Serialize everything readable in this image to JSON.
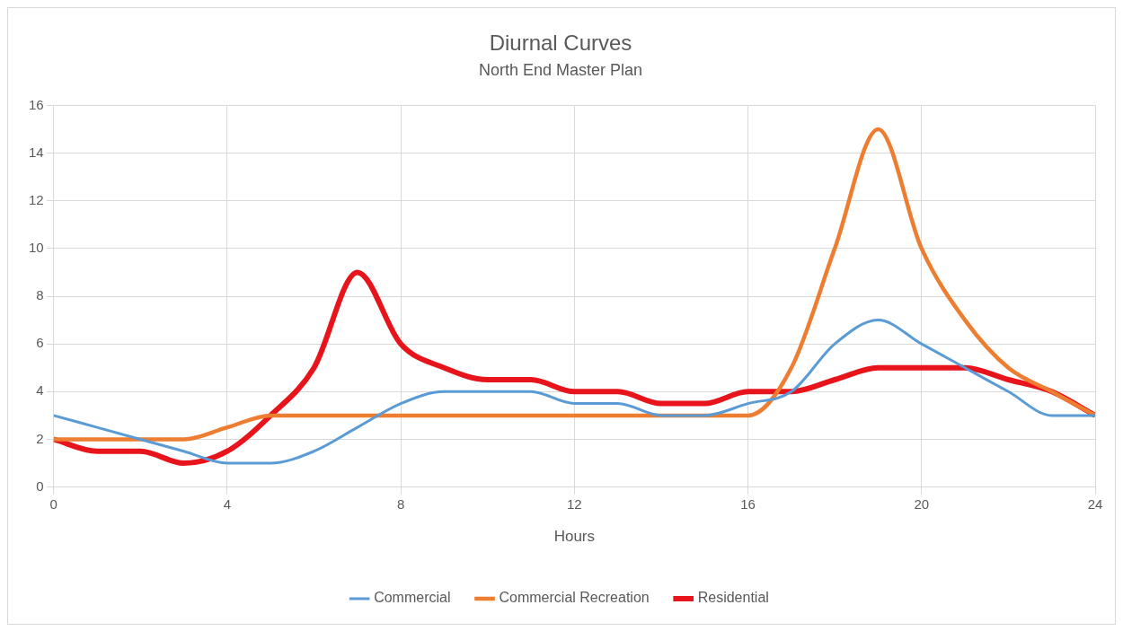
{
  "chart_data": {
    "type": "line",
    "title": "Diurnal Curves",
    "subtitle": "North End Master Plan",
    "xlabel": "Hours",
    "x": [
      0,
      1,
      2,
      3,
      4,
      5,
      6,
      7,
      8,
      9,
      10,
      11,
      12,
      13,
      14,
      15,
      16,
      17,
      18,
      19,
      20,
      21,
      22,
      23,
      24
    ],
    "xlim": [
      0,
      24
    ],
    "xticks": [
      0,
      4,
      8,
      12,
      16,
      20,
      24
    ],
    "ylim": [
      0,
      16
    ],
    "yticks": [
      0,
      2,
      4,
      6,
      8,
      10,
      12,
      14,
      16
    ],
    "grid": true,
    "legend": "bottom",
    "series": [
      {
        "name": "Commercial",
        "color": "#5b9bd5",
        "values": [
          3,
          2.5,
          2,
          1.5,
          1,
          1,
          1.5,
          2.5,
          3.5,
          4,
          4,
          4,
          3.5,
          3.5,
          3,
          3,
          3.5,
          4,
          6,
          7,
          6,
          5,
          4,
          3,
          3
        ]
      },
      {
        "name": "Commercial Recreation",
        "color": "#ed7d31",
        "values": [
          2,
          2,
          2,
          2,
          2.5,
          3,
          3,
          3,
          3,
          3,
          3,
          3,
          3,
          3,
          3,
          3,
          3,
          5,
          10,
          15,
          10,
          7,
          5,
          4,
          3
        ]
      },
      {
        "name": "Residential",
        "color": "#e8141b",
        "values": [
          2,
          1.5,
          1.5,
          1,
          1.5,
          3,
          5,
          9,
          6,
          5,
          4.5,
          4.5,
          4,
          4,
          3.5,
          3.5,
          4,
          4,
          4.5,
          5,
          5,
          5,
          4.5,
          4,
          3
        ]
      }
    ]
  }
}
